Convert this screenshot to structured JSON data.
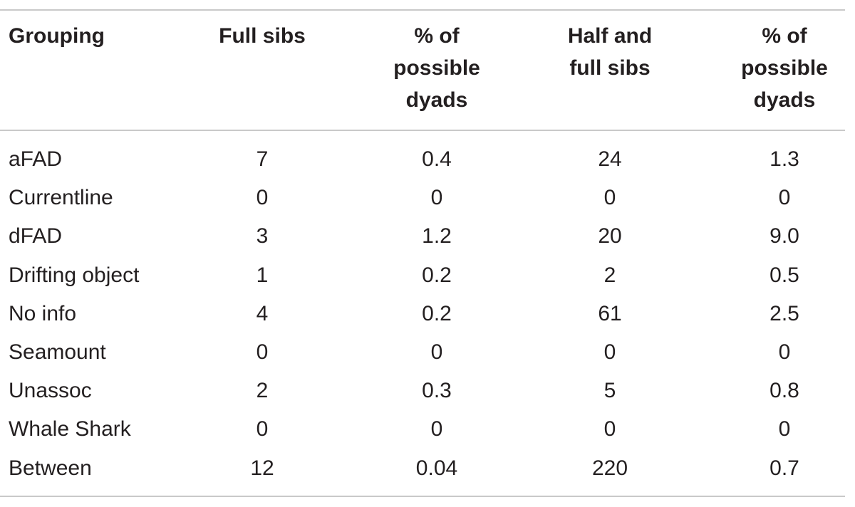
{
  "table": {
    "headers": [
      "Grouping",
      "Full sibs",
      "% of\npossible\ndyads",
      "Half and\nfull sibs",
      "% of\npossible\ndyads"
    ],
    "rows": [
      [
        "aFAD",
        "7",
        "0.4",
        "24",
        "1.3"
      ],
      [
        "Currentline",
        "0",
        "0",
        "0",
        "0"
      ],
      [
        "dFAD",
        "3",
        "1.2",
        "20",
        "9.0"
      ],
      [
        "Drifting object",
        "1",
        "0.2",
        "2",
        "0.5"
      ],
      [
        "No info",
        "4",
        "0.2",
        "61",
        "2.5"
      ],
      [
        "Seamount",
        "0",
        "0",
        "0",
        "0"
      ],
      [
        "Unassoc",
        "2",
        "0.3",
        "5",
        "0.8"
      ],
      [
        "Whale Shark",
        "0",
        "0",
        "0",
        "0"
      ],
      [
        "Between",
        "12",
        "0.04",
        "220",
        "0.7"
      ]
    ]
  },
  "colors": {
    "text": "#231f20",
    "rule": "#c9c9c9"
  }
}
